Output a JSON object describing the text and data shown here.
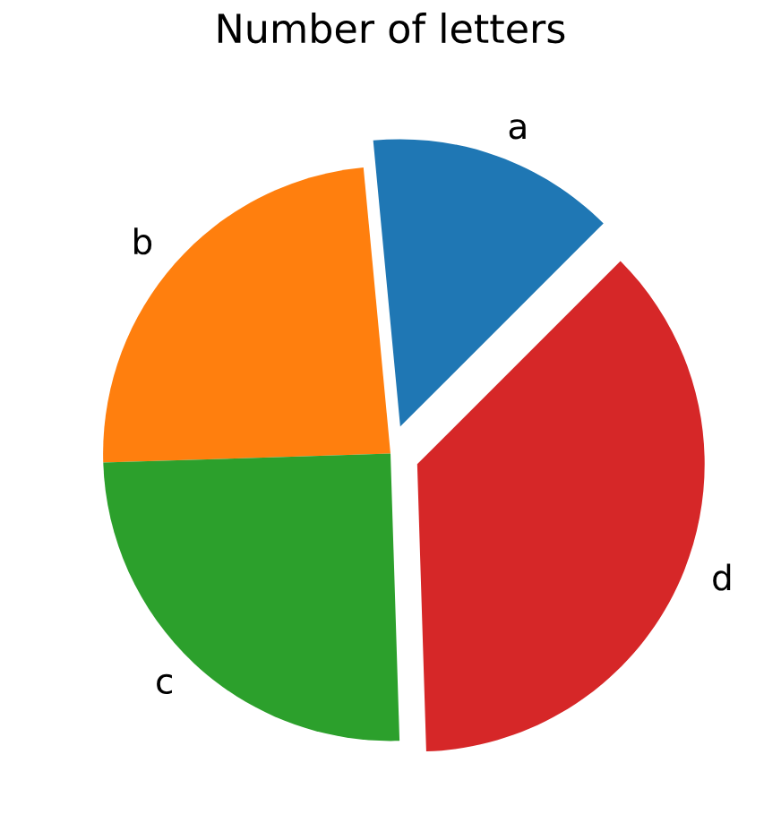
{
  "chart_data": {
    "type": "pie",
    "title": "Number of letters",
    "categories": [
      "a",
      "b",
      "c",
      "d"
    ],
    "values": [
      14,
      24,
      25,
      37
    ],
    "colors": [
      "#1f77b4",
      "#ff7f0e",
      "#2ca02c",
      "#d62728"
    ]
  }
}
